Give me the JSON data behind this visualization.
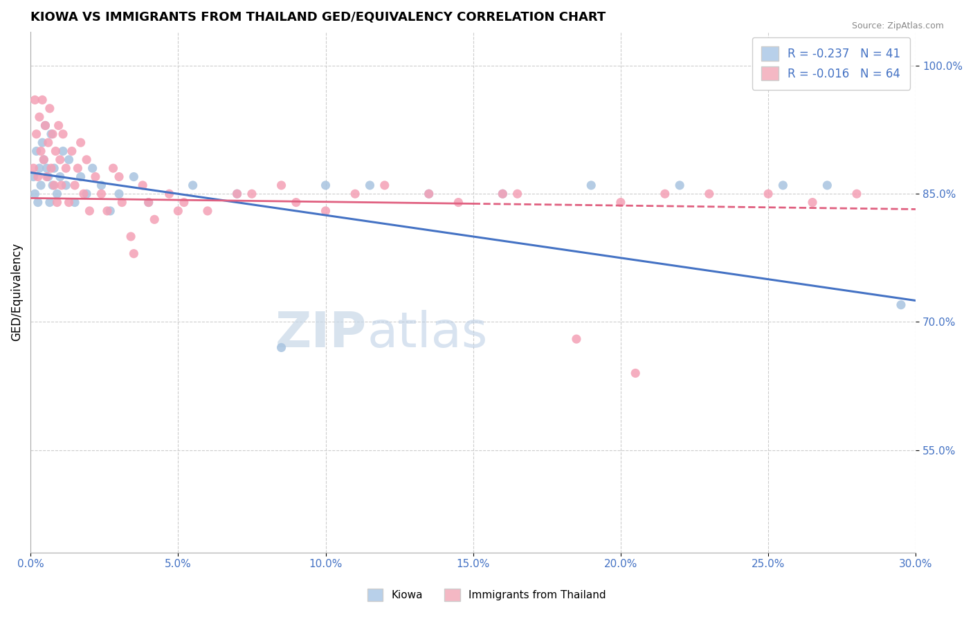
{
  "title": "KIOWA VS IMMIGRANTS FROM THAILAND GED/EQUIVALENCY CORRELATION CHART",
  "source": "Source: ZipAtlas.com",
  "xlabel": "",
  "ylabel": "GED/Equivalency",
  "xlim": [
    0.0,
    30.0
  ],
  "ylim": [
    43.0,
    104.0
  ],
  "xticks": [
    0.0,
    5.0,
    10.0,
    15.0,
    20.0,
    25.0,
    30.0
  ],
  "yticks_right": [
    100.0,
    85.0,
    70.0,
    55.0
  ],
  "kiowa_R": -0.237,
  "kiowa_N": 41,
  "thailand_R": -0.016,
  "thailand_N": 64,
  "kiowa_color": "#a8c4e0",
  "thailand_color": "#f4a0b5",
  "kiowa_line_color": "#4472c4",
  "thailand_line_color": "#e06080",
  "background_color": "#ffffff",
  "grid_color": "#cccccc",
  "legend_color_kiowa": "#b8d0ea",
  "legend_color_thailand": "#f4b8c4",
  "kiowa_trendline_x0": 0.0,
  "kiowa_trendline_y0": 87.5,
  "kiowa_trendline_x1": 30.0,
  "kiowa_trendline_y1": 72.5,
  "thailand_trendline_x0": 0.0,
  "thailand_trendline_y0": 84.5,
  "thailand_trendline_x1": 30.0,
  "thailand_trendline_y1": 83.2,
  "thailand_dash_start": 15.0,
  "kiowa_points_x": [
    0.1,
    0.15,
    0.2,
    0.25,
    0.3,
    0.35,
    0.4,
    0.45,
    0.5,
    0.55,
    0.6,
    0.65,
    0.7,
    0.75,
    0.8,
    0.9,
    1.0,
    1.1,
    1.2,
    1.3,
    1.5,
    1.7,
    1.9,
    2.1,
    2.4,
    2.7,
    3.0,
    3.5,
    4.0,
    5.5,
    7.0,
    8.5,
    10.0,
    11.5,
    13.5,
    16.0,
    19.0,
    22.0,
    25.5,
    27.0,
    29.5
  ],
  "kiowa_points_y": [
    87,
    85,
    90,
    84,
    88,
    86,
    91,
    89,
    93,
    88,
    87,
    84,
    92,
    86,
    88,
    85,
    87,
    90,
    86,
    89,
    84,
    87,
    85,
    88,
    86,
    83,
    85,
    87,
    84,
    86,
    85,
    67,
    86,
    86,
    85,
    85,
    86,
    86,
    86,
    86,
    72
  ],
  "thailand_points_x": [
    0.1,
    0.15,
    0.2,
    0.25,
    0.3,
    0.35,
    0.4,
    0.45,
    0.5,
    0.55,
    0.6,
    0.65,
    0.7,
    0.75,
    0.8,
    0.85,
    0.9,
    0.95,
    1.0,
    1.05,
    1.1,
    1.2,
    1.3,
    1.4,
    1.5,
    1.6,
    1.7,
    1.8,
    1.9,
    2.0,
    2.2,
    2.4,
    2.6,
    2.8,
    3.1,
    3.4,
    3.8,
    4.2,
    4.7,
    5.2,
    6.0,
    7.0,
    8.5,
    10.0,
    12.0,
    14.5,
    16.0,
    18.5,
    20.0,
    21.5,
    23.0,
    25.0,
    26.5,
    28.0,
    3.0,
    3.5,
    4.0,
    5.0,
    7.5,
    9.0,
    11.0,
    13.5,
    16.5,
    20.5
  ],
  "thailand_points_y": [
    88,
    96,
    92,
    87,
    94,
    90,
    96,
    89,
    93,
    87,
    91,
    95,
    88,
    92,
    86,
    90,
    84,
    93,
    89,
    86,
    92,
    88,
    84,
    90,
    86,
    88,
    91,
    85,
    89,
    83,
    87,
    85,
    83,
    88,
    84,
    80,
    86,
    82,
    85,
    84,
    83,
    85,
    86,
    83,
    86,
    84,
    85,
    68,
    84,
    85,
    85,
    85,
    84,
    85,
    87,
    78,
    84,
    83,
    85,
    84,
    85,
    85,
    85,
    64
  ]
}
